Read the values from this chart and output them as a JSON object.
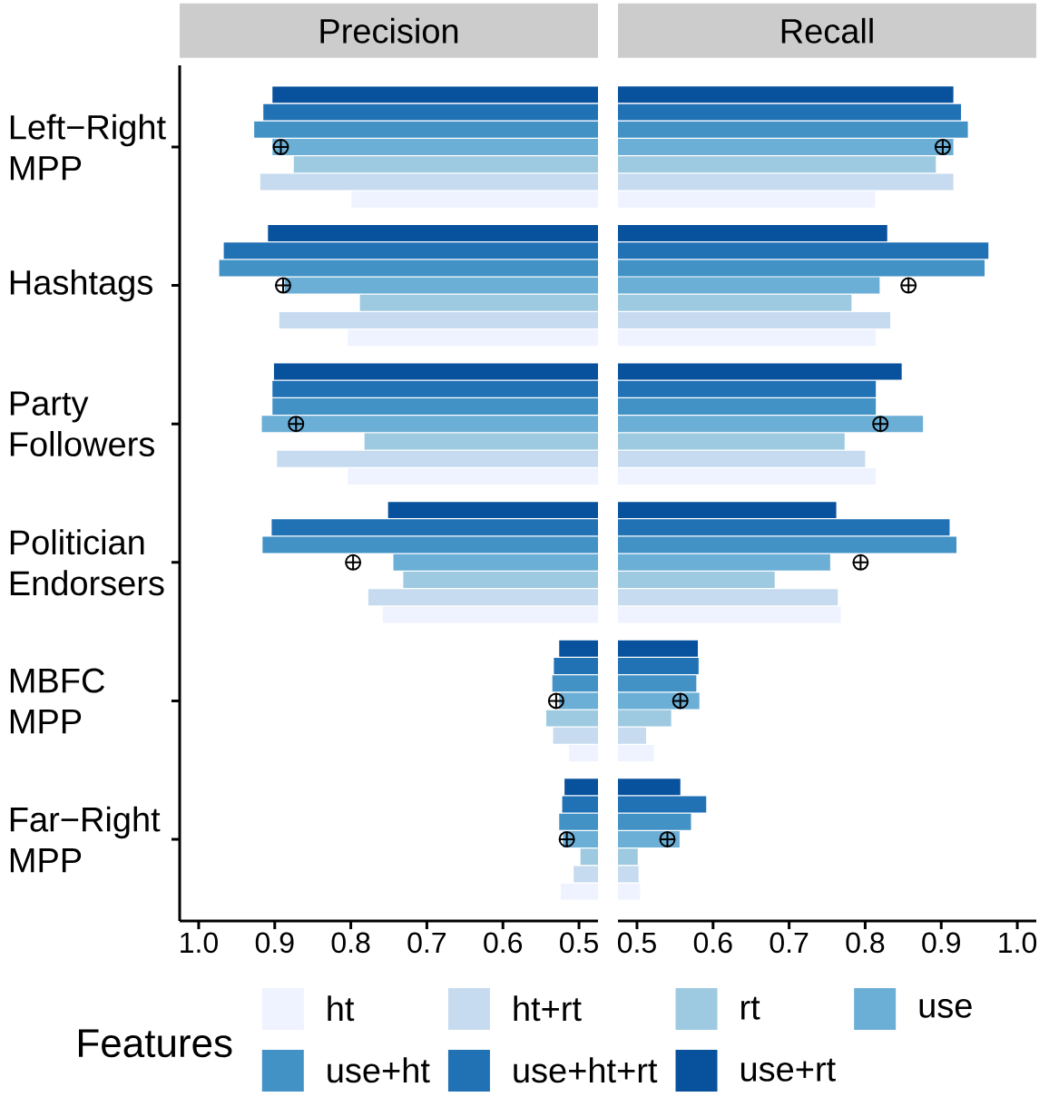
{
  "chart_data": [
    {
      "type": "bar",
      "orientation": "horizontal",
      "title": "Precision",
      "legend": "bottom",
      "legend_title": "Features",
      "categories": [
        "Left−Right MPP",
        "Hashtags",
        "Party Followers",
        "Politician Endorsers",
        "MBFC MPP",
        "Far−Right MPP"
      ],
      "xlim": [
        1.025,
        0.475
      ],
      "xticks": [
        {
          "value": 1.0,
          "label": "1.0"
        },
        0.9,
        0.8,
        0.7,
        0.6,
        0.5
      ],
      "series": [
        {
          "name": "ht",
          "color": "#eff3ff",
          "values": [
            0.799,
            0.804,
            0.804,
            0.758,
            0.513,
            0.524
          ]
        },
        {
          "name": "ht+rt",
          "color": "#c6dbef",
          "values": [
            0.919,
            0.894,
            0.897,
            0.777,
            0.534,
            0.507
          ]
        },
        {
          "name": "rt",
          "color": "#9ecae1",
          "values": [
            0.875,
            0.788,
            0.782,
            0.731,
            0.543,
            0.498
          ]
        },
        {
          "name": "use",
          "color": "#6baed6",
          "values": [
            0.903,
            0.887,
            0.917,
            0.744,
            0.526,
            0.521
          ]
        },
        {
          "name": "use+ht",
          "color": "#4292c6",
          "values": [
            0.927,
            0.973,
            0.903,
            0.916,
            0.535,
            0.526
          ]
        },
        {
          "name": "use+ht+rt",
          "color": "#2171b5",
          "values": [
            0.915,
            0.967,
            0.903,
            0.904,
            0.533,
            0.522
          ]
        },
        {
          "name": "use+rt",
          "color": "#08519c",
          "values": [
            0.903,
            0.909,
            0.901,
            0.751,
            0.526,
            0.519
          ]
        },
        {
          "type": "scatter",
          "marker": "cross",
          "color": "#000000",
          "values": [
            0.892,
            0.889,
            0.872,
            0.797,
            0.53,
            0.516
          ]
        }
      ]
    },
    {
      "type": "bar",
      "orientation": "horizontal",
      "title": "Recall",
      "tick_labels": "x",
      "categories": [
        null,
        null,
        null,
        null,
        null,
        null
      ],
      "xlim": [
        0.475,
        1.025
      ],
      "xticks": [
        0.5,
        0.6,
        0.7,
        0.8,
        0.9,
        {
          "value": 1.0,
          "label": "1.0"
        }
      ],
      "series": [
        {
          "color": "#eff3ff",
          "values": [
            0.813,
            0.814,
            0.814,
            0.768,
            0.522,
            0.504
          ]
        },
        {
          "color": "#c6dbef",
          "values": [
            0.916,
            0.833,
            0.8,
            0.764,
            0.512,
            0.502
          ]
        },
        {
          "color": "#9ecae1",
          "values": [
            0.893,
            0.782,
            0.773,
            0.681,
            0.545,
            0.501
          ]
        },
        {
          "color": "#6baed6",
          "values": [
            0.916,
            0.819,
            0.876,
            0.754,
            0.582,
            0.556
          ]
        },
        {
          "color": "#4292c6",
          "values": [
            0.935,
            0.957,
            0.814,
            0.92,
            0.578,
            0.571
          ]
        },
        {
          "color": "#2171b5",
          "values": [
            0.926,
            0.962,
            0.814,
            0.911,
            0.581,
            0.591
          ]
        },
        {
          "color": "#08519c",
          "values": [
            0.916,
            0.829,
            0.848,
            0.762,
            0.58,
            0.557
          ]
        },
        {
          "type": "scatter",
          "marker": "cross",
          "color": "#000000",
          "values": [
            0.902,
            0.857,
            0.82,
            0.794,
            0.557,
            0.54
          ]
        }
      ]
    }
  ]
}
